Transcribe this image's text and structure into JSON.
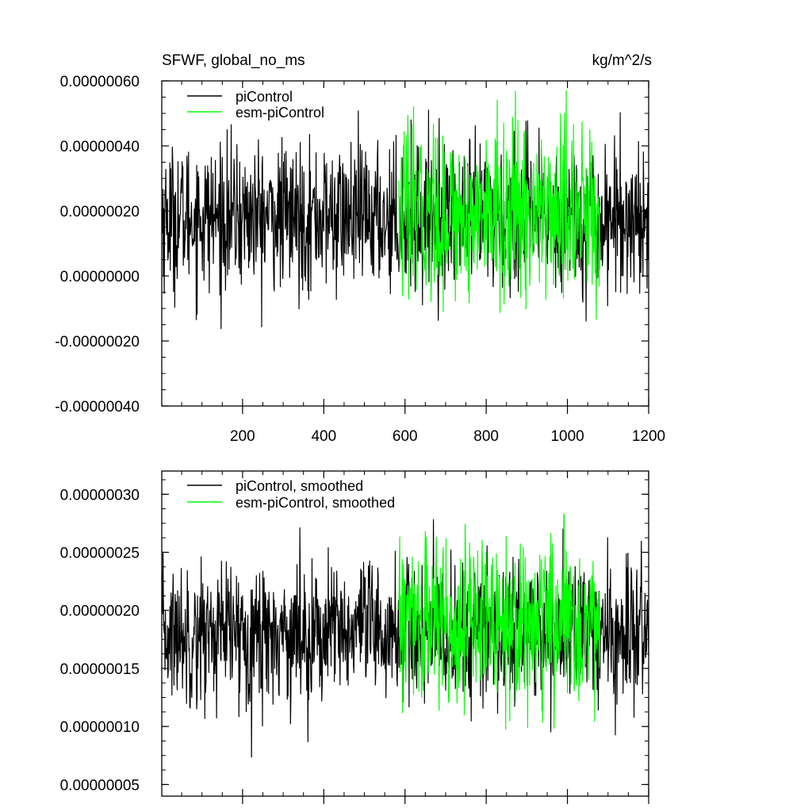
{
  "colors": {
    "picontrol": "#000000",
    "esm_picontrol": "#00ff00"
  },
  "chart_data": [
    {
      "type": "line",
      "title": "SFWF, global_no_ms",
      "units": "kg/m^2/s",
      "xlim": [
        1,
        1200
      ],
      "ylim": [
        -4e-07,
        6e-07
      ],
      "x_ticks": [
        200,
        400,
        600,
        800,
        1000,
        1200
      ],
      "x_tick_labels": [
        "200",
        "400",
        "600",
        "800",
        "1000",
        "1200"
      ],
      "y_ticks": [
        -4e-07,
        -2e-07,
        0.0,
        2e-07,
        4e-07,
        6e-07
      ],
      "y_tick_labels": [
        "-0.00000040",
        "-0.00000020",
        "0.00000000",
        "0.00000020",
        "0.00000040",
        "0.00000060"
      ],
      "legend_position": "top-left",
      "series": [
        {
          "name": "piControl",
          "color": "#000000",
          "x_start": 1,
          "x_end": 1200,
          "mean": 1.8e-07,
          "std": 1.1e-07,
          "min": -1.7e-07,
          "max": 5.4e-07
        },
        {
          "name": "esm-piControl",
          "color": "#00ff00",
          "x_start": 585,
          "x_end": 1080,
          "mean": 1.9e-07,
          "std": 1.3e-07,
          "min": -2.2e-07,
          "max": 5.8e-07
        }
      ]
    },
    {
      "type": "line",
      "xlim": [
        1,
        1200
      ],
      "ylim": [
        4e-08,
        3.2e-07
      ],
      "y_ticks": [
        5e-08,
        1e-07,
        1.5e-07,
        2e-07,
        2.5e-07,
        3e-07
      ],
      "y_tick_labels": [
        "0.00000005",
        "0.00000010",
        "0.00000015",
        "0.00000020",
        "0.00000025",
        "0.00000030"
      ],
      "legend_position": "top-left",
      "series": [
        {
          "name": "piControl, smoothed",
          "color": "#000000",
          "x_start": 1,
          "x_end": 1200,
          "mean": 1.8e-07,
          "std": 3e-08,
          "min": 7e-08,
          "max": 2.8e-07
        },
        {
          "name": "esm-piControl, smoothed",
          "color": "#00ff00",
          "x_start": 585,
          "x_end": 1080,
          "mean": 1.9e-07,
          "std": 3.5e-08,
          "min": 9e-08,
          "max": 2.9e-07
        }
      ]
    }
  ]
}
